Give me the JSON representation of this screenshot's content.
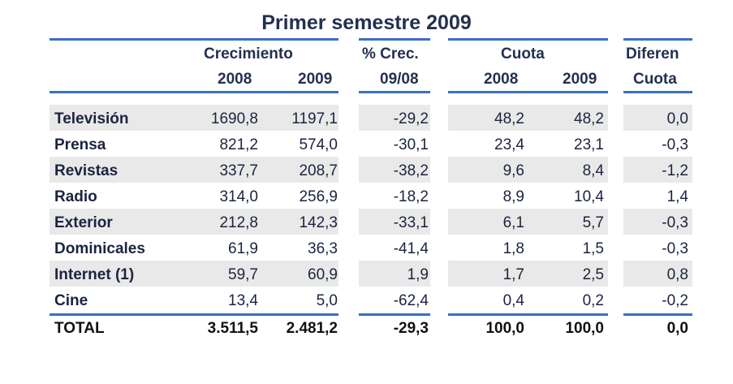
{
  "title": "Primer semestre 2009",
  "headers": {
    "crecimiento": "Crecimiento",
    "crecimiento_2008": "2008",
    "crecimiento_2009": "2009",
    "pct_crec": "% Crec.",
    "pct_period": "09/08",
    "cuota": "Cuota",
    "cuota_2008": "2008",
    "cuota_2009": "2009",
    "diferen": "Diferen",
    "diferen_cuota": "Cuota"
  },
  "rows": [
    {
      "label": "Televisión",
      "c2008": "1690,8",
      "c2009": "1197,1",
      "pct": "-29,2",
      "q2008": "48,2",
      "q2009": "48,2",
      "dif": "0,0"
    },
    {
      "label": "Prensa",
      "c2008": "821,2",
      "c2009": "574,0",
      "pct": "-30,1",
      "q2008": "23,4",
      "q2009": "23,1",
      "dif": "-0,3"
    },
    {
      "label": "Revistas",
      "c2008": "337,7",
      "c2009": "208,7",
      "pct": "-38,2",
      "q2008": "9,6",
      "q2009": "8,4",
      "dif": "-1,2"
    },
    {
      "label": "Radio",
      "c2008": "314,0",
      "c2009": "256,9",
      "pct": "-18,2",
      "q2008": "8,9",
      "q2009": "10,4",
      "dif": "1,4"
    },
    {
      "label": "Exterior",
      "c2008": "212,8",
      "c2009": "142,3",
      "pct": "-33,1",
      "q2008": "6,1",
      "q2009": "5,7",
      "dif": "-0,3"
    },
    {
      "label": "Dominicales",
      "c2008": "61,9",
      "c2009": "36,3",
      "pct": "-41,4",
      "q2008": "1,8",
      "q2009": "1,5",
      "dif": "-0,3"
    },
    {
      "label": "Internet (1)",
      "c2008": "59,7",
      "c2009": "60,9",
      "pct": "1,9",
      "q2008": "1,7",
      "q2009": "2,5",
      "dif": "0,8"
    },
    {
      "label": "Cine",
      "c2008": "13,4",
      "c2009": "5,0",
      "pct": "-62,4",
      "q2008": "0,4",
      "q2009": "0,2",
      "dif": "-0,2"
    }
  ],
  "total": {
    "label": "TOTAL",
    "c2008": "3.511,5",
    "c2009": "2.481,2",
    "pct": "-29,3",
    "q2008": "100,0",
    "q2009": "100,0",
    "dif": "0,0"
  },
  "colors": {
    "accent": "#3a6fc4",
    "band": "#e9e9e9",
    "text": "#1b2440"
  }
}
